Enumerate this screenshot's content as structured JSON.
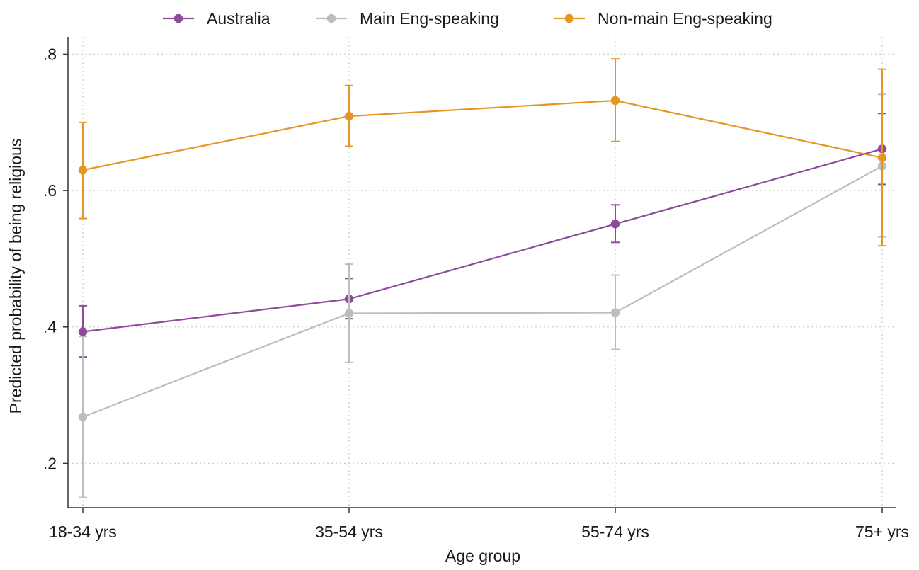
{
  "chart_data": {
    "type": "line",
    "title": "",
    "xlabel": "Age group",
    "ylabel": "Predicted probability of being religious",
    "categories": [
      "18-34 yrs",
      "35-54 yrs",
      "55-74 yrs",
      "75+ yrs"
    ],
    "ylim": [
      0.135,
      0.815
    ],
    "yticks": [
      0.2,
      0.4,
      0.6,
      0.8
    ],
    "ytick_labels": [
      ".2",
      ".4",
      ".6",
      ".8"
    ],
    "grid": true,
    "legend_position": "top",
    "series": [
      {
        "name": "Australia",
        "color": "#8e4b9c",
        "values": [
          0.393,
          0.441,
          0.551,
          0.661
        ],
        "ci_low": [
          0.356,
          0.412,
          0.524,
          0.609
        ],
        "ci_high": [
          0.431,
          0.471,
          0.579,
          0.713
        ]
      },
      {
        "name": "Main Eng-speaking",
        "color": "#bdbdbd",
        "values": [
          0.268,
          0.42,
          0.421,
          0.636
        ],
        "ci_low": [
          0.15,
          0.348,
          0.367,
          0.532
        ],
        "ci_high": [
          0.386,
          0.492,
          0.476,
          0.741
        ]
      },
      {
        "name": "Non-main Eng-speaking",
        "color": "#e69522",
        "values": [
          0.63,
          0.709,
          0.732,
          0.648
        ],
        "ci_low": [
          0.559,
          0.665,
          0.672,
          0.519
        ],
        "ci_high": [
          0.7,
          0.754,
          0.793,
          0.778
        ]
      }
    ]
  }
}
